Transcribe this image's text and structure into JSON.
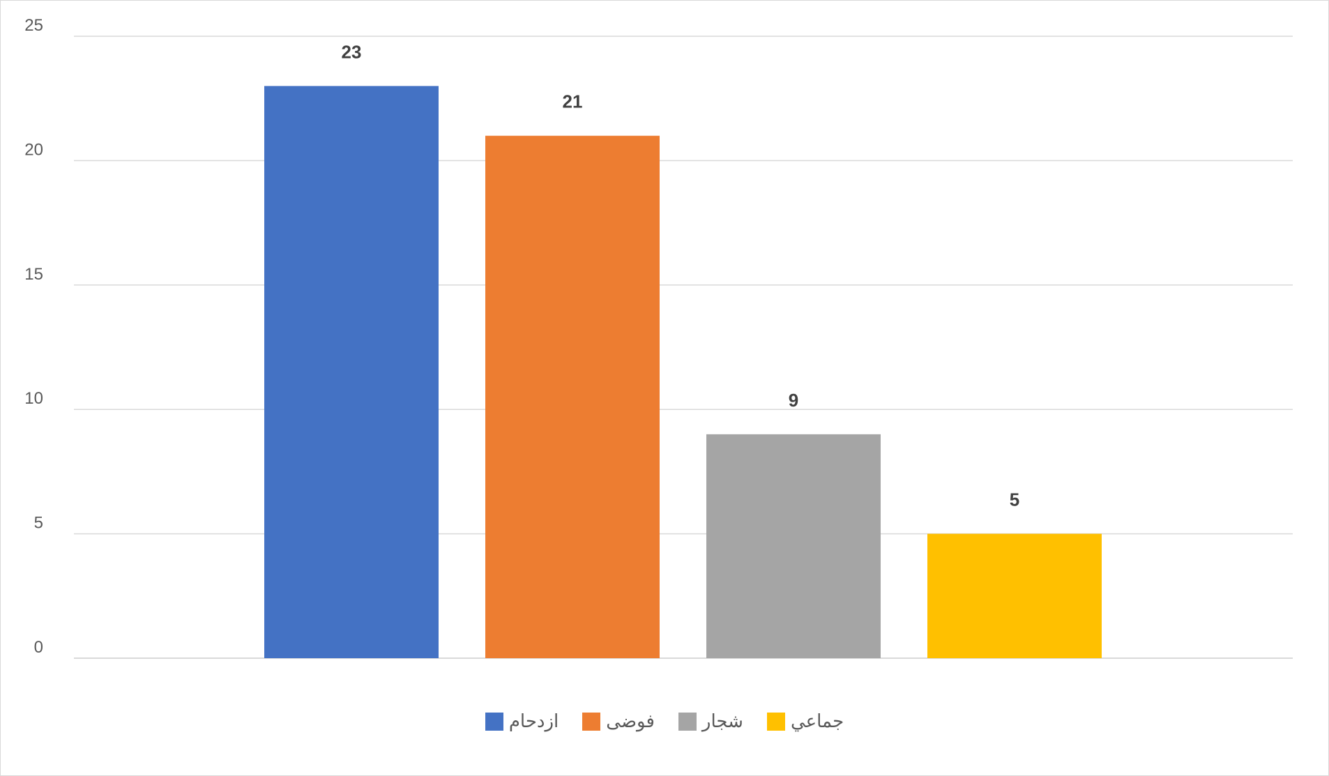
{
  "chart_data": {
    "type": "bar",
    "categories": [
      "ازدحام",
      "فوضى",
      "شجار",
      "جماعي"
    ],
    "values": [
      23,
      21,
      9,
      5
    ],
    "colors": [
      "#4472c4",
      "#ed7d31",
      "#a5a5a5",
      "#ffc000"
    ],
    "data_labels": [
      "23",
      "21",
      "9",
      "5"
    ],
    "title": "",
    "xlabel": "",
    "ylabel": "",
    "ylim": [
      0,
      25
    ],
    "yticks": [
      0,
      5,
      10,
      15,
      20,
      25
    ],
    "grid": true,
    "legend": {
      "position": "bottom",
      "entries": [
        "ازدحام",
        "فوضى",
        "شجار",
        "جماعي"
      ]
    }
  }
}
